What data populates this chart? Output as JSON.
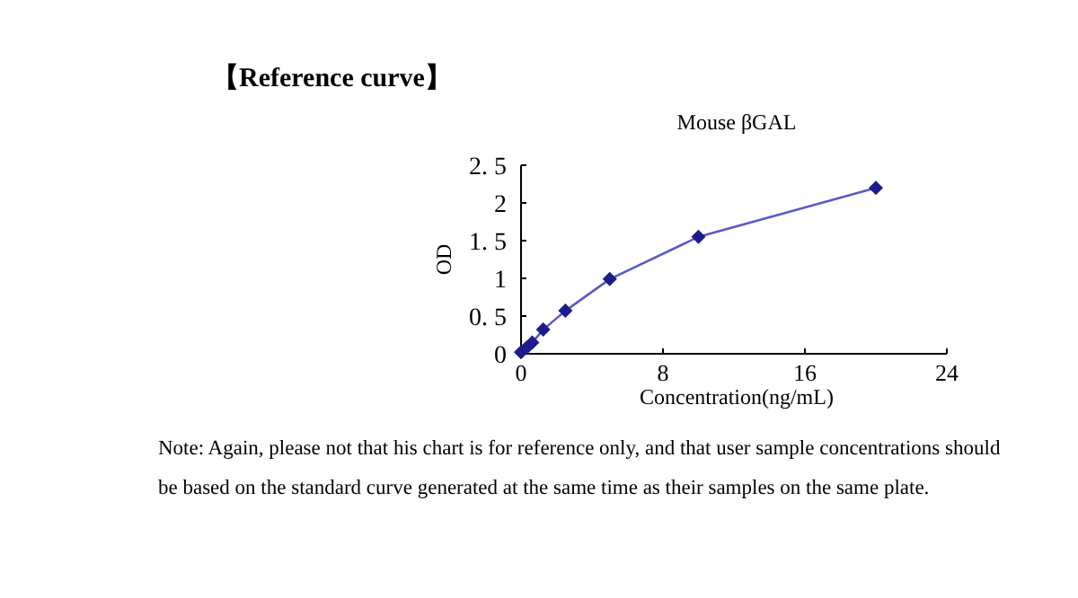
{
  "chart_data": {
    "type": "line",
    "title": "【Reference curve】",
    "subtitle": "Mouse βGAL",
    "xlabel": "Concentration(ng/mL)",
    "ylabel": "OD",
    "x": [
      0,
      0.31,
      0.63,
      1.25,
      2.5,
      5,
      10,
      20
    ],
    "series": [
      {
        "color": "#1c1c8c",
        "values": [
          0.02,
          0.08,
          0.15,
          0.32,
          0.57,
          0.99,
          1.55,
          2.2
        ]
      }
    ],
    "marker": "diamond",
    "line_style": "solid",
    "xlim": [
      0,
      24
    ],
    "xticks": [
      0,
      8,
      16,
      24
    ],
    "ylim": [
      0,
      2.5
    ],
    "yticks": [
      0,
      {
        "value": 0.5,
        "label": "0. 5"
      },
      1,
      {
        "value": 1.5,
        "label": "1. 5"
      },
      2,
      {
        "value": 2.5,
        "label": "2. 5"
      }
    ],
    "annotations": [
      "Note: Again, please not that his chart is for reference only, and that user sample concentrations should be based on the standard curve generated at the same time as their samples on the same plate."
    ]
  }
}
